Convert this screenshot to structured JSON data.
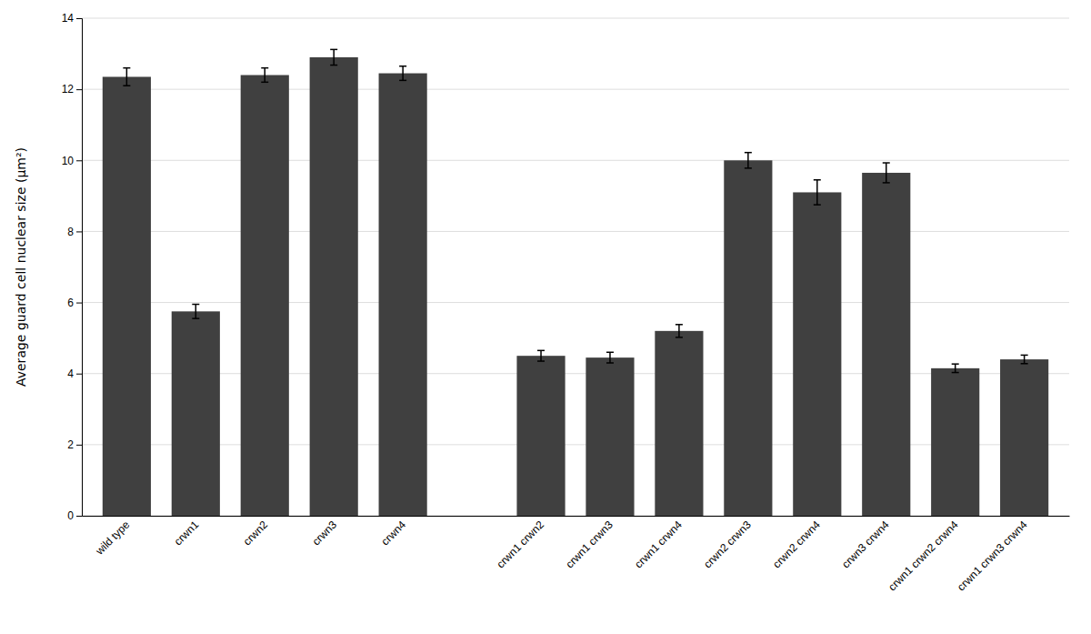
{
  "chart_data": {
    "type": "bar",
    "ylabel": "Average guard cell nuclear size (μm²)",
    "categories": [
      "wild type",
      "crwn1",
      "crwn2",
      "crwn3",
      "crwn4",
      null,
      "crwn1 crwn2",
      "crwn1 crwn3",
      "crwn1 crwn4",
      "crwn2 crwn3",
      "crwn2 crwn4",
      "crwn3 crwn4",
      "crwn1 crwn2 crwn4",
      "crwn1 crwn3 crwn4"
    ],
    "values": [
      12.35,
      5.75,
      12.4,
      12.9,
      12.45,
      null,
      4.5,
      4.45,
      5.2,
      10.0,
      9.1,
      9.65,
      4.15,
      4.4
    ],
    "errors": [
      0.25,
      0.2,
      0.2,
      0.22,
      0.2,
      null,
      0.15,
      0.15,
      0.18,
      0.22,
      0.35,
      0.28,
      0.12,
      0.12
    ],
    "color": "#404040",
    "ylim": [
      0,
      14
    ],
    "yticks": [
      0,
      2,
      4,
      6,
      8,
      10,
      12,
      14
    ],
    "grid": true
  }
}
